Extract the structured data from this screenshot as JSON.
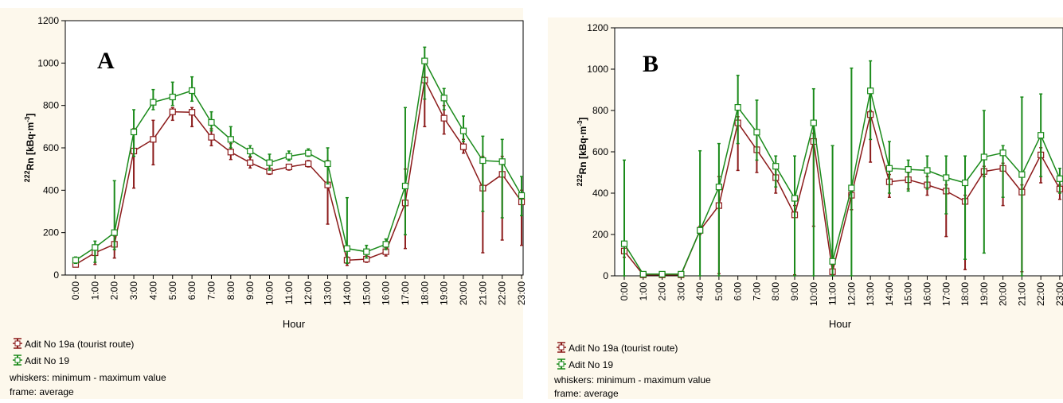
{
  "chart_data": [
    {
      "type": "line",
      "panel_label": "A",
      "xlabel": "Hour",
      "ylabel_mass": "222",
      "ylabel_text": "Rn [kBq·m",
      "ylabel_exp": "-3",
      "ylabel_close": "]",
      "ylim": [
        0,
        1200
      ],
      "yticks": [
        0,
        200,
        400,
        600,
        800,
        1000,
        1200
      ],
      "categories": [
        "0:00",
        "1:00",
        "2:00",
        "3:00",
        "4:00",
        "5:00",
        "6:00",
        "7:00",
        "8:00",
        "9:00",
        "10:00",
        "11:00",
        "12:00",
        "13:00",
        "14:00",
        "15:00",
        "16:00",
        "17:00",
        "18:00",
        "19:00",
        "20:00",
        "21:00",
        "22:00",
        "23:00"
      ],
      "series": [
        {
          "name": "Adit No 19a (tourist route)",
          "color": "#8b1a1a",
          "values": [
            50,
            105,
            145,
            585,
            640,
            770,
            768,
            650,
            580,
            530,
            490,
            510,
            525,
            425,
            70,
            75,
            110,
            340,
            920,
            740,
            605,
            410,
            475,
            345
          ],
          "min": [
            40,
            50,
            80,
            410,
            520,
            730,
            700,
            610,
            545,
            505,
            475,
            495,
            510,
            240,
            45,
            60,
            90,
            125,
            700,
            665,
            575,
            105,
            165,
            140
          ],
          "max": [
            60,
            130,
            185,
            690,
            730,
            790,
            790,
            690,
            620,
            555,
            500,
            520,
            540,
            540,
            85,
            90,
            130,
            500,
            1000,
            800,
            640,
            560,
            560,
            400
          ]
        },
        {
          "name": "Adit No 19",
          "color": "#1a8a1a",
          "values": [
            70,
            130,
            200,
            675,
            815,
            840,
            870,
            720,
            640,
            585,
            530,
            560,
            575,
            525,
            125,
            110,
            145,
            420,
            1010,
            835,
            680,
            540,
            535,
            375
          ],
          "min": [
            55,
            60,
            120,
            560,
            780,
            800,
            820,
            680,
            600,
            560,
            495,
            540,
            560,
            430,
            55,
            80,
            120,
            190,
            830,
            780,
            630,
            300,
            270,
            280
          ],
          "max": [
            85,
            160,
            445,
            780,
            875,
            910,
            935,
            770,
            700,
            610,
            570,
            585,
            595,
            600,
            365,
            140,
            170,
            790,
            1075,
            880,
            750,
            655,
            640,
            465
          ]
        }
      ],
      "legend_note_1": "whiskers: minimum - maximum value",
      "legend_note_2": "frame: average"
    },
    {
      "type": "line",
      "panel_label": "B",
      "xlabel": "Hour",
      "ylabel_mass": "222",
      "ylabel_text": "Rn [kBq·m",
      "ylabel_exp": "-3",
      "ylabel_close": "]",
      "ylim": [
        0,
        1200
      ],
      "yticks": [
        0,
        200,
        400,
        600,
        800,
        1000,
        1200
      ],
      "categories": [
        "0:00",
        "1:00",
        "2:00",
        "3:00",
        "4:00",
        "5:00",
        "6:00",
        "7:00",
        "8:00",
        "9:00",
        "10:00",
        "11:00",
        "12:00",
        "13:00",
        "14:00",
        "15:00",
        "16:00",
        "17:00",
        "18:00",
        "19:00",
        "20:00",
        "21:00",
        "22:00",
        "23:00"
      ],
      "series": [
        {
          "name": "Adit No 19a (tourist route)",
          "color": "#8b1a1a",
          "values": [
            120,
            5,
            5,
            5,
            220,
            340,
            740,
            610,
            475,
            295,
            650,
            20,
            390,
            780,
            455,
            465,
            440,
            410,
            360,
            505,
            520,
            405,
            585,
            420
          ],
          "min": [
            90,
            0,
            0,
            0,
            200,
            10,
            510,
            500,
            400,
            5,
            240,
            5,
            320,
            550,
            380,
            420,
            390,
            190,
            30,
            480,
            340,
            20,
            450,
            370
          ],
          "max": [
            160,
            10,
            10,
            10,
            240,
            480,
            770,
            700,
            520,
            340,
            690,
            50,
            430,
            800,
            490,
            500,
            480,
            440,
            390,
            530,
            545,
            440,
            620,
            440
          ]
        },
        {
          "name": "Adit No 19",
          "color": "#1a8a1a",
          "values": [
            155,
            8,
            8,
            8,
            220,
            430,
            815,
            695,
            530,
            375,
            740,
            70,
            425,
            895,
            520,
            515,
            510,
            475,
            450,
            575,
            595,
            490,
            680,
            470
          ],
          "min": [
            0,
            0,
            0,
            0,
            0,
            0,
            640,
            560,
            430,
            0,
            0,
            0,
            0,
            660,
            400,
            410,
            420,
            300,
            80,
            110,
            380,
            0,
            480,
            400
          ],
          "max": [
            560,
            20,
            20,
            20,
            605,
            640,
            970,
            850,
            580,
            580,
            905,
            630,
            1005,
            1040,
            650,
            560,
            580,
            580,
            580,
            800,
            630,
            865,
            880,
            520
          ]
        }
      ],
      "legend_note_1": "whiskers: minimum - maximum value",
      "legend_note_2": "frame: average"
    }
  ]
}
